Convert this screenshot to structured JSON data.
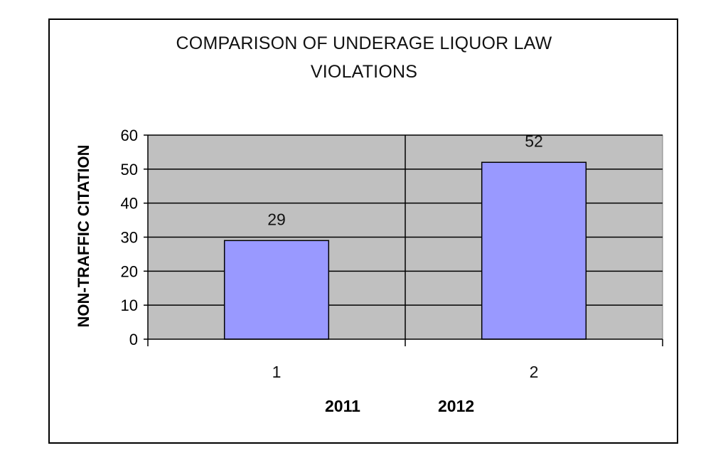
{
  "chart_data": {
    "type": "bar",
    "title": [
      "COMPARISON OF UNDERAGE LIQUOR LAW",
      "VIOLATIONS"
    ],
    "ylabel": "NON-TRAFFIC CITATION",
    "categories": [
      "1",
      "2"
    ],
    "values": [
      29,
      52
    ],
    "data_labels": [
      "29",
      "52"
    ],
    "ylim": [
      0,
      60
    ],
    "yticks": [
      0,
      10,
      20,
      30,
      40,
      50,
      60
    ],
    "grid": true,
    "legend": "none",
    "colors": {
      "bar": "#9999ff",
      "plot_background": "#c0c0c0",
      "gridline": "#000000"
    }
  },
  "footer_labels": [
    "2011",
    "2012"
  ]
}
